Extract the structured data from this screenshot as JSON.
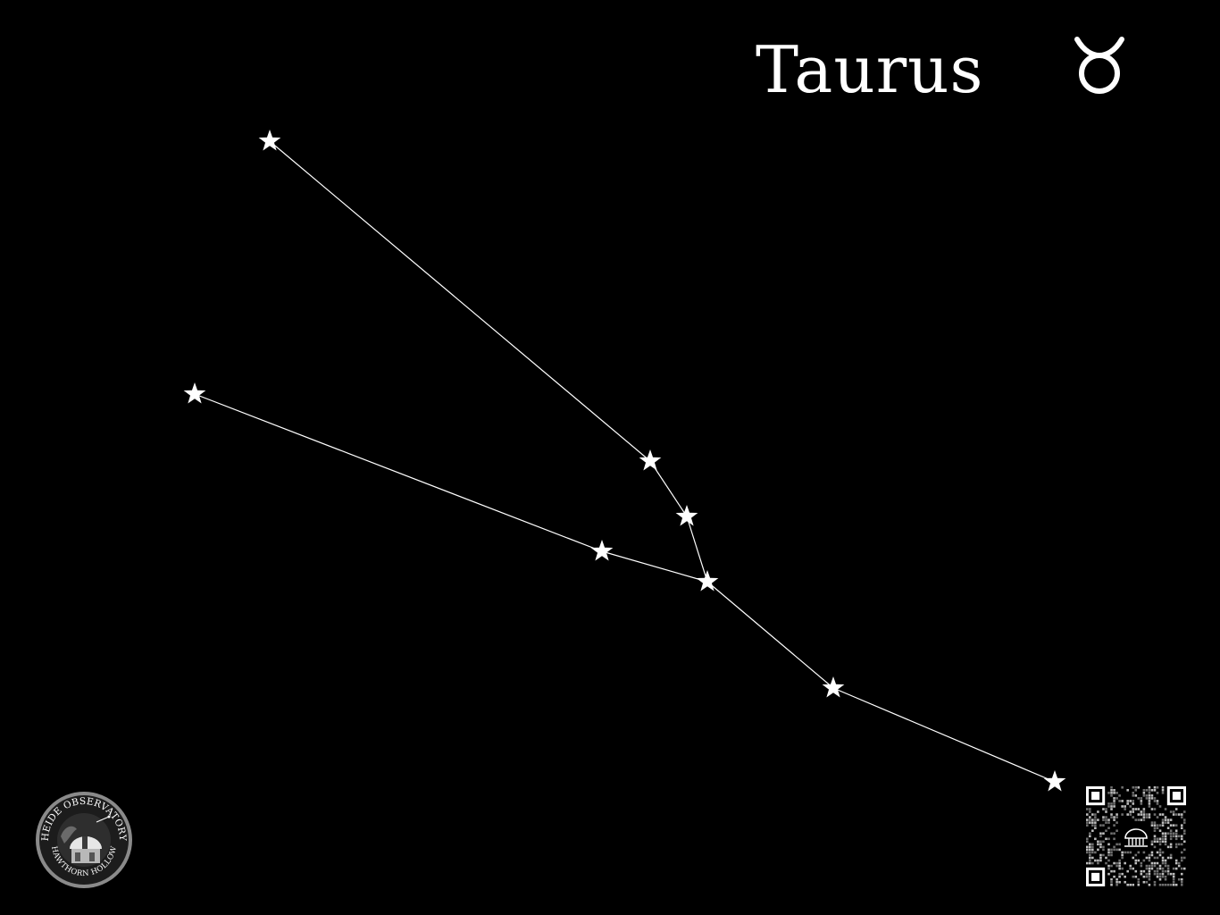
{
  "title": "Taurus",
  "zodiac_symbol": "♉",
  "colors": {
    "background": "#000000",
    "stars": "#ffffff",
    "lines": "#ffffff"
  },
  "logo": {
    "top_text": "HEIDE OBSERVATORY",
    "bottom_text": "HAWTHORN HOLLOW"
  },
  "icons": {
    "logo": "observatory-seal-icon",
    "qr": "qr-code-icon",
    "star": "star-icon"
  }
}
